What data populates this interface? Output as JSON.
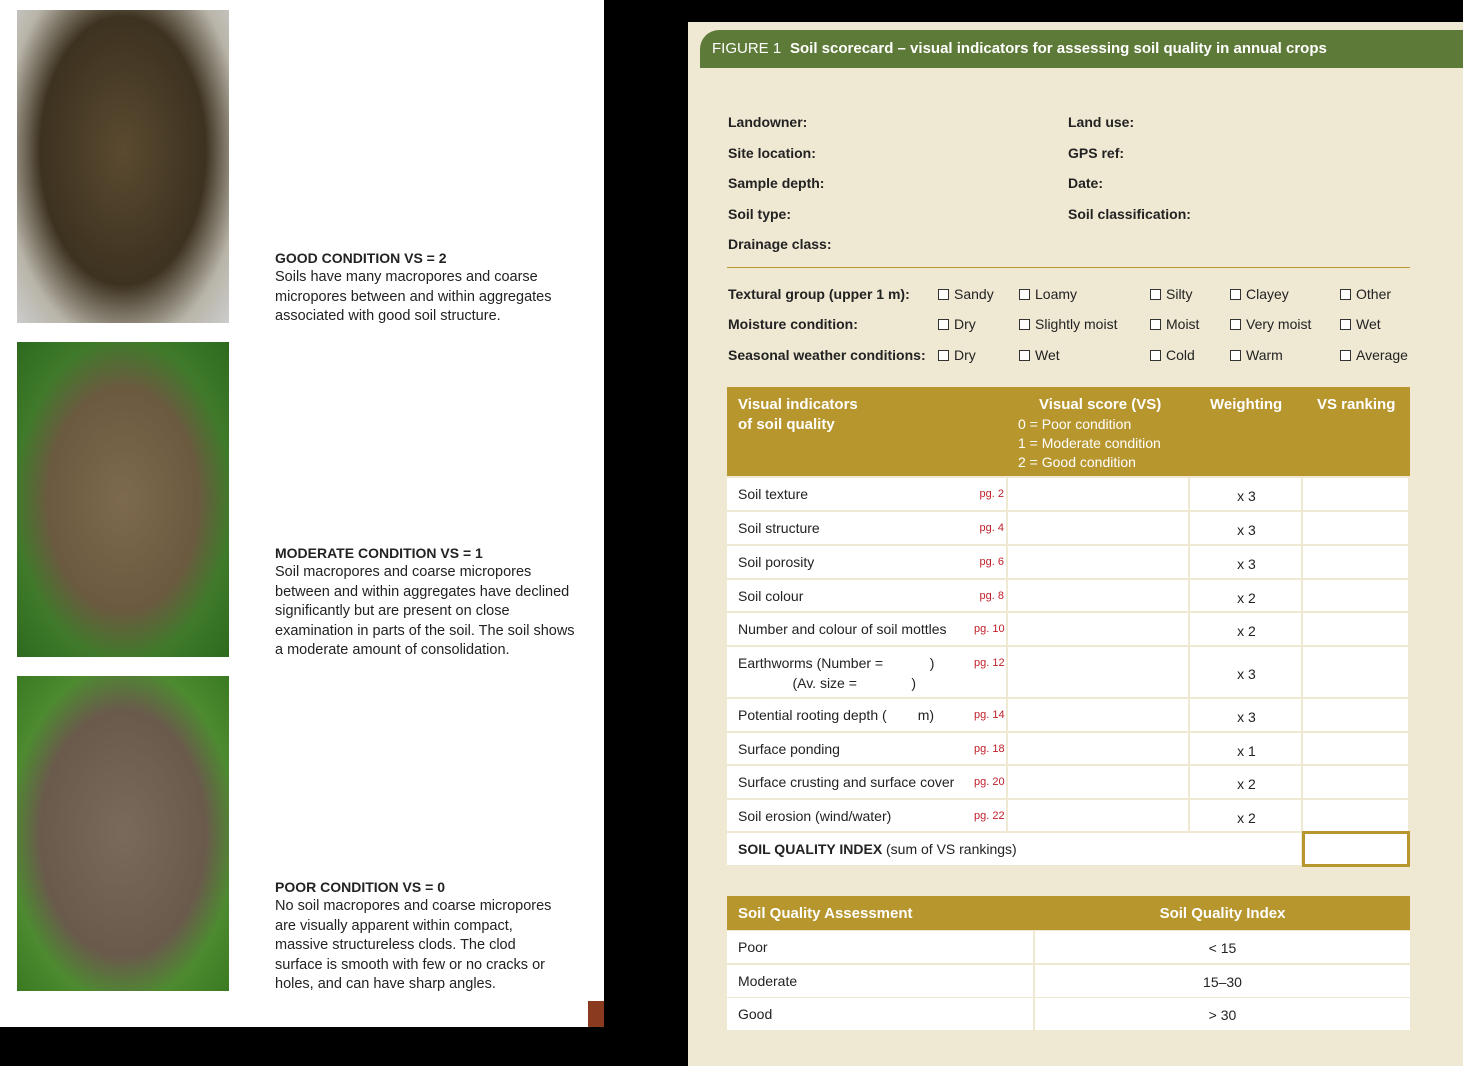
{
  "left_page": {
    "conditions": [
      {
        "heading": "GOOD CONDITION VS = 2",
        "lines": [
          "Soils have many macropores and coarse",
          "micropores between and within aggregates",
          "associated with good soil structure."
        ]
      },
      {
        "heading": "MODERATE CONDITION VS = 1",
        "lines": [
          "Soil macropores and coarse micropores",
          "between and within aggregates have declined",
          "significantly but are present on close",
          "examination in parts of the soil. The soil shows",
          "a moderate amount of consolidation."
        ]
      },
      {
        "heading": "POOR CONDITION VS = 0",
        "lines": [
          "No soil macropores and coarse micropores",
          "are visually apparent within compact,",
          "massive structureless clods. The clod",
          "surface is smooth with few or no cracks or",
          "holes, and can have sharp angles."
        ]
      }
    ]
  },
  "figure": {
    "label": "FIGURE 1",
    "title": "Soil scorecard – visual indicators for assessing soil quality in annual crops",
    "fields_left": [
      "Landowner:",
      "Site location:",
      "Sample depth:",
      "Soil type:",
      "Drainage class:"
    ],
    "fields_right": [
      "Land use:",
      "GPS ref:",
      "Date:",
      "Soil classification:"
    ],
    "checkbox_rows": [
      {
        "label": "Textural group (upper 1 m):",
        "options": [
          "Sandy",
          "Loamy",
          "Silty",
          "Clayey",
          "Other"
        ]
      },
      {
        "label": "Moisture condition:",
        "options": [
          "Dry",
          "Slightly moist",
          "Moist",
          "Very moist",
          "Wet"
        ]
      },
      {
        "label": "Seasonal weather conditions:",
        "options": [
          "Dry",
          "Wet",
          "Cold",
          "Warm",
          "Average"
        ]
      }
    ],
    "scorecard": {
      "headers": {
        "indicators": [
          "Visual indicators",
          "of soil quality"
        ],
        "score": "Visual score (VS)",
        "score_legend": [
          "0 = Poor condition",
          "1 = Moderate condition",
          "2 = Good condition"
        ],
        "weighting": "Weighting",
        "ranking": "VS ranking"
      },
      "rows": [
        {
          "indicator": [
            "Soil texture"
          ],
          "page": "pg. 2",
          "weight": "x 3"
        },
        {
          "indicator": [
            "Soil structure"
          ],
          "page": "pg. 4",
          "weight": "x 3"
        },
        {
          "indicator": [
            "Soil porosity"
          ],
          "page": "pg. 6",
          "weight": "x 3"
        },
        {
          "indicator": [
            "Soil colour"
          ],
          "page": "pg. 8",
          "weight": "x 2"
        },
        {
          "indicator": [
            "Number and colour of soil mottles"
          ],
          "page": "pg. 10",
          "weight": "x 2"
        },
        {
          "indicator": [
            "Earthworms (Number =            )",
            "              (Av. size =              )"
          ],
          "page": "pg. 12",
          "weight": "x 3"
        },
        {
          "indicator": [
            "Potential rooting depth (        m)"
          ],
          "page": "pg. 14",
          "weight": "x 3"
        },
        {
          "indicator": [
            "Surface ponding"
          ],
          "page": "pg. 18",
          "weight": "x 1"
        },
        {
          "indicator": [
            "Surface crusting and surface cover"
          ],
          "page": "pg. 20",
          "weight": "x 2"
        },
        {
          "indicator": [
            "Soil erosion (wind/water)"
          ],
          "page": "pg. 22",
          "weight": "x 2"
        }
      ],
      "index_label": "SOIL QUALITY INDEX",
      "index_note": "(sum of VS rankings)"
    },
    "assessment": {
      "headers": [
        "Soil Quality Assessment",
        "Soil Quality Index"
      ],
      "rows": [
        [
          "Poor",
          "< 15"
        ],
        [
          "Moderate",
          "15–30"
        ],
        [
          "Good",
          "> 30"
        ]
      ]
    }
  }
}
